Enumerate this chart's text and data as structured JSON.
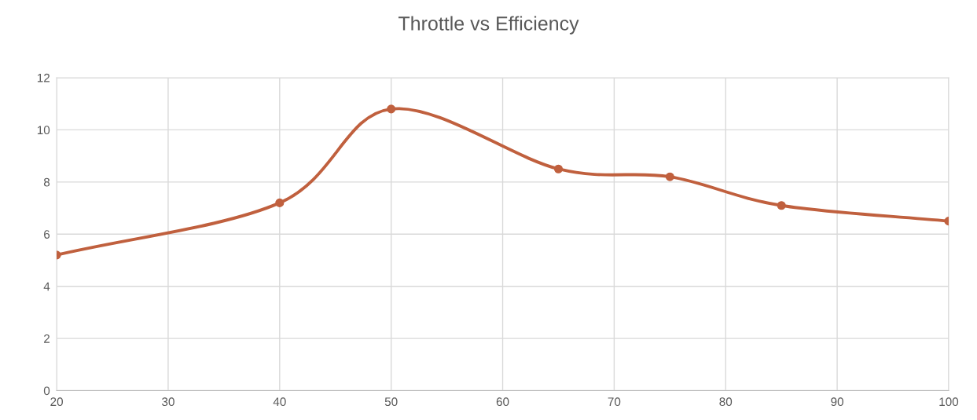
{
  "chart_data": {
    "type": "line",
    "title": "Throttle vs Efficiency",
    "x": [
      20,
      40,
      50,
      65,
      75,
      85,
      100
    ],
    "series": [
      {
        "color": "#c0603e",
        "values": [
          5.2,
          7.2,
          10.8,
          8.5,
          8.2,
          7.1,
          6.5
        ]
      }
    ],
    "xlim": [
      20,
      100
    ],
    "xticks": [
      20,
      30,
      40,
      50,
      60,
      70,
      80,
      90,
      100
    ],
    "ylim": [
      0,
      12
    ],
    "yticks": [
      0,
      2,
      4,
      6,
      8,
      10,
      12
    ],
    "grid": true,
    "marker": "circle",
    "line_style": "solid"
  }
}
